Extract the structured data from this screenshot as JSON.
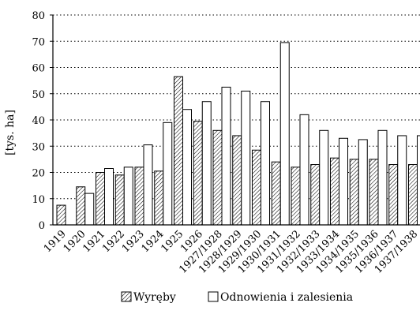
{
  "chart_data": {
    "type": "bar",
    "ylabel": "[tys. ha]",
    "ylim": [
      0,
      80
    ],
    "yticks": [
      0,
      10,
      20,
      30,
      40,
      50,
      60,
      70,
      80
    ],
    "grid": "horizontal-dotted",
    "legend_position": "bottom",
    "categories": [
      "1919",
      "1920",
      "1921",
      "1922",
      "1923",
      "1924",
      "1925",
      "1926",
      "1927/1928",
      "1928/1929",
      "1929/1930",
      "1930/1931",
      "1931/1932",
      "1932/1933",
      "1933/1934",
      "1934/1935",
      "1935/1936",
      "1936/1937",
      "1937/1938"
    ],
    "series": [
      {
        "name": "Wyręby",
        "pattern": "hatched",
        "values": [
          7.5,
          14.5,
          20,
          19,
          22,
          20.5,
          56.5,
          39.5,
          36,
          34,
          28.5,
          24,
          22,
          23,
          25.5,
          25,
          25,
          23,
          23
        ]
      },
      {
        "name": "Odnowienia i zalesienia",
        "pattern": "white",
        "values": [
          0,
          12,
          21.5,
          22,
          30.5,
          39,
          44,
          47,
          52.5,
          51,
          47,
          69.5,
          42,
          36,
          33,
          32.5,
          36,
          34,
          34
        ]
      }
    ]
  },
  "colors": {
    "stroke": "#000000",
    "fill_open": "#ffffff",
    "grid": "#000000"
  }
}
